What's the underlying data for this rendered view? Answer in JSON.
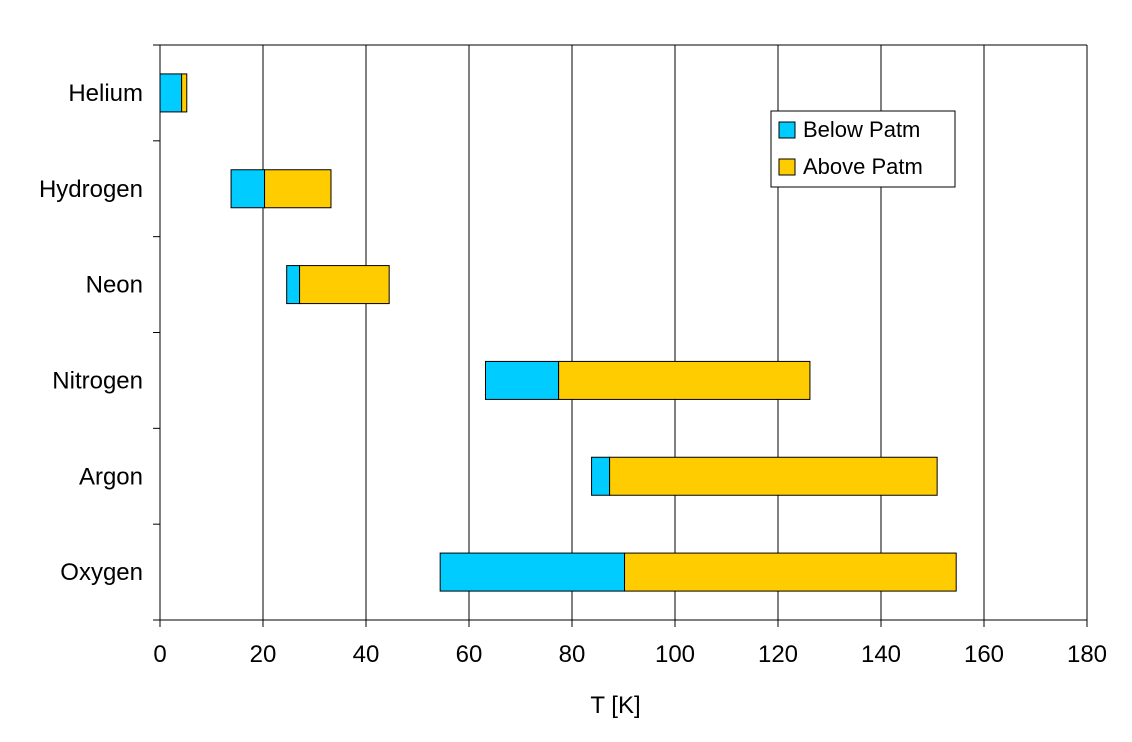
{
  "chart_data": {
    "type": "bar",
    "orientation": "horizontal",
    "stacked": true,
    "categories": [
      "Helium",
      "Hydrogen",
      "Neon",
      "Nitrogen",
      "Argon",
      "Oxygen"
    ],
    "x_ticks": [
      "0",
      "20",
      "40",
      "60",
      "80",
      "100",
      "120",
      "140",
      "160",
      "180"
    ],
    "xlim": [
      0,
      180
    ],
    "xlabel": "T [K]",
    "ylabel": "",
    "title": "",
    "grid": "vertical major gridlines",
    "legend_position": "top-right",
    "series": [
      {
        "name": "Below Patm",
        "color": "#00ccff",
        "ranges": [
          [
            0,
            4.2
          ],
          [
            13.8,
            20.3
          ],
          [
            24.6,
            27.1
          ],
          [
            63.2,
            77.4
          ],
          [
            83.8,
            87.3
          ],
          [
            54.4,
            90.2
          ]
        ]
      },
      {
        "name": "Above Patm",
        "color": "#ffcc00",
        "ranges": [
          [
            4.2,
            5.2
          ],
          [
            20.3,
            33.2
          ],
          [
            27.1,
            44.5
          ],
          [
            77.4,
            126.2
          ],
          [
            87.3,
            150.9
          ],
          [
            90.2,
            154.6
          ]
        ]
      }
    ]
  }
}
